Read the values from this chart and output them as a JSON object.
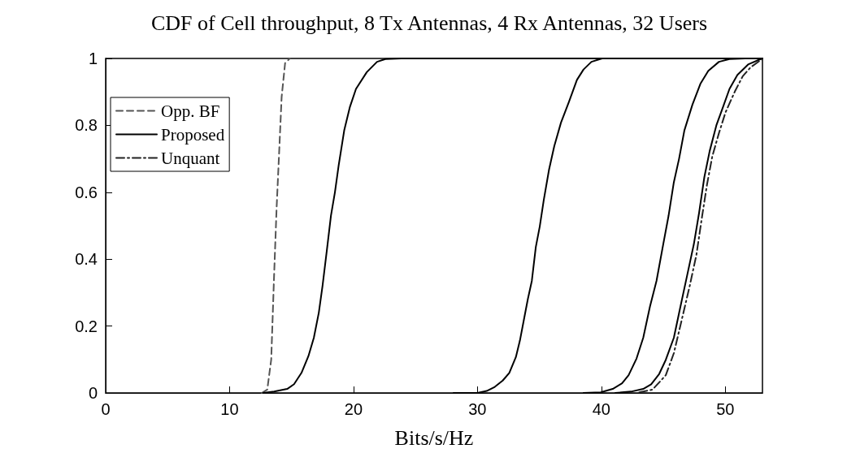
{
  "chart_data": {
    "type": "line",
    "title": "CDF of Cell throughput, 8 Tx Antennas, 4 Rx Antennas, 32 Users",
    "xlabel": "Bits/s/Hz",
    "xlim": [
      0,
      53
    ],
    "xticks": [
      0,
      10,
      20,
      30,
      40,
      50
    ],
    "ylim": [
      0,
      1
    ],
    "yticks": [
      0,
      0.2,
      0.4,
      0.6,
      0.8,
      1
    ],
    "grid": false,
    "legend": "top left",
    "marker": "none",
    "series": [
      {
        "name": "Opp. BF",
        "color": "#555555",
        "line_style": "dashed",
        "x": [
          12.6,
          13.04,
          13.36,
          13.58,
          13.79,
          14.0,
          14.2,
          14.48,
          14.86
        ],
        "values": [
          0,
          0.01,
          0.1,
          0.34,
          0.55,
          0.72,
          0.885,
          0.986,
          1
        ]
      },
      {
        "name": "Proposed",
        "color": "#000000",
        "line_style": "solid",
        "x": [
          12.7,
          13.6,
          14.65,
          15.2,
          15.8,
          16.36,
          16.8,
          17.2,
          17.5,
          17.86,
          18.18,
          18.5,
          18.8,
          19.25,
          19.7,
          20.2,
          21.07,
          21.9,
          22.57,
          23.85,
          53
        ],
        "values": [
          0,
          0.004,
          0.012,
          0.026,
          0.06,
          0.11,
          0.165,
          0.24,
          0.32,
          0.43,
          0.53,
          0.6,
          0.68,
          0.785,
          0.854,
          0.909,
          0.959,
          0.99,
          0.998,
          1,
          1
        ]
      },
      {
        "color": "#000000",
        "line_style": "solid",
        "x": [
          28.07,
          30,
          30.75,
          31.4,
          32.04,
          32.57,
          33.1,
          33.43,
          33.75,
          34.07,
          34.39,
          34.71,
          35.03,
          35.35,
          35.78,
          36.2,
          36.74,
          37.38,
          38.03,
          38.56,
          39.2,
          40.06,
          53
        ],
        "values": [
          0,
          0,
          0.006,
          0.018,
          0.037,
          0.06,
          0.107,
          0.157,
          0.219,
          0.281,
          0.335,
          0.436,
          0.498,
          0.576,
          0.668,
          0.738,
          0.808,
          0.87,
          0.936,
          0.967,
          0.99,
          1,
          1
        ]
      },
      {
        "color": "#000000",
        "line_style": "solid",
        "x": [
          38.56,
          39.95,
          40.92,
          41.67,
          42.2,
          42.84,
          43.38,
          43.92,
          44.45,
          44.99,
          45.42,
          45.85,
          46.27,
          46.7,
          47.35,
          47.99,
          48.63,
          49.49,
          50.34,
          51.6,
          53
        ],
        "values": [
          0,
          0.002,
          0.012,
          0.029,
          0.053,
          0.103,
          0.165,
          0.258,
          0.335,
          0.444,
          0.529,
          0.63,
          0.7,
          0.785,
          0.862,
          0.924,
          0.963,
          0.99,
          0.998,
          1,
          1
        ]
      },
      {
        "color": "#000000",
        "line_style": "solid",
        "x": [
          41.13,
          42.4,
          43.38,
          44.02,
          44.67,
          45.2,
          45.85,
          46.38,
          46.92,
          47.46,
          47.88,
          48.31,
          48.74,
          49.28,
          49.81,
          50.34,
          50.98,
          51.84,
          52.97
        ],
        "values": [
          0,
          0.004,
          0.012,
          0.026,
          0.057,
          0.099,
          0.165,
          0.258,
          0.351,
          0.444,
          0.537,
          0.645,
          0.723,
          0.8,
          0.854,
          0.909,
          0.951,
          0.982,
          1
        ]
      },
      {
        "name": "Unquant",
        "color": "#222222",
        "line_style": "dashdot",
        "x": [
          43.06,
          44.13,
          45.2,
          45.85,
          46.49,
          47.13,
          47.67,
          48.1,
          48.52,
          48.95,
          49.49,
          50.02,
          50.77,
          51.41,
          52.06,
          52.97
        ],
        "values": [
          0.002,
          0.01,
          0.053,
          0.119,
          0.219,
          0.32,
          0.413,
          0.521,
          0.622,
          0.707,
          0.777,
          0.839,
          0.901,
          0.947,
          0.974,
          0.998
        ]
      }
    ]
  }
}
